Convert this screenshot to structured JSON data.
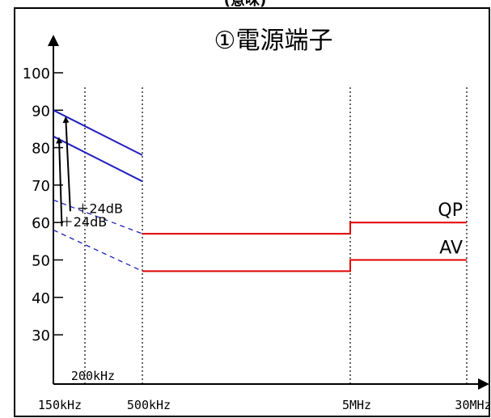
{
  "chart_data": {
    "type": "line",
    "title": "①電源端子",
    "header_fragment": "(意味)",
    "y_ticks": [
      "100",
      "90",
      "80",
      "70",
      "60",
      "50",
      "40",
      "30"
    ],
    "y_tick_values": [
      100,
      90,
      80,
      70,
      60,
      50,
      40,
      30
    ],
    "x_ticks": [
      {
        "label": "150kHz",
        "value": 0.15
      },
      {
        "label": "500kHz",
        "value": 0.5
      },
      {
        "label": "5MHz",
        "value": 5
      },
      {
        "label": "30MHz",
        "value": 30
      }
    ],
    "x_gridlines": [
      {
        "label": "200kHz",
        "value": 0.2
      },
      {
        "value": 0.5
      },
      {
        "value": 5
      },
      {
        "value": 30
      }
    ],
    "series": [
      {
        "name": "QP",
        "color": "#e00000",
        "style": "solid",
        "points": [
          [
            0.5,
            57
          ],
          [
            5,
            57
          ],
          [
            5,
            60
          ],
          [
            30,
            60
          ]
        ]
      },
      {
        "name": "AV",
        "color": "#e00000",
        "style": "solid",
        "points": [
          [
            0.5,
            47
          ],
          [
            5,
            47
          ],
          [
            5,
            50
          ],
          [
            30,
            50
          ]
        ]
      },
      {
        "color": "#2020c0",
        "style": "solid",
        "points": [
          [
            0.15,
            90
          ],
          [
            0.5,
            78
          ]
        ]
      },
      {
        "color": "#2020c0",
        "style": "solid",
        "points": [
          [
            0.15,
            83
          ],
          [
            0.5,
            71
          ]
        ]
      },
      {
        "color": "#2020c0",
        "style": "dashed",
        "points": [
          [
            0.15,
            66
          ],
          [
            0.5,
            57
          ]
        ]
      },
      {
        "color": "#2020c0",
        "style": "dashed",
        "points": [
          [
            0.15,
            58
          ],
          [
            0.5,
            47
          ]
        ]
      }
    ],
    "annotations": [
      {
        "text": "＋24dB",
        "x": 0.185,
        "y": 62.5
      },
      {
        "text": "＋24dB",
        "x": 0.16,
        "y": 59
      }
    ],
    "arrows": [
      {
        "from": [
          0.175,
          63
        ],
        "to": [
          0.168,
          87.5
        ]
      },
      {
        "from": [
          0.162,
          59
        ],
        "to": [
          0.158,
          82
        ]
      }
    ],
    "grid": false
  }
}
